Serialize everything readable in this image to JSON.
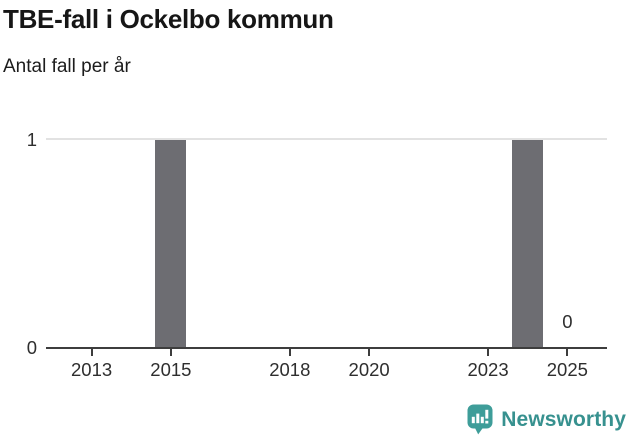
{
  "header": {
    "title": "TBE-fall i Ockelbo kommun",
    "subtitle": "Antal fall per år"
  },
  "chart_data": {
    "type": "bar",
    "title": "TBE-fall i Ockelbo kommun",
    "subtitle": "Antal fall per år",
    "xlabel": "",
    "ylabel": "Antal fall per år",
    "x": [
      2012,
      2013,
      2014,
      2015,
      2016,
      2017,
      2018,
      2019,
      2020,
      2021,
      2022,
      2023,
      2024,
      2025
    ],
    "values": [
      0,
      0,
      0,
      1,
      0,
      0,
      0,
      0,
      0,
      0,
      0,
      0,
      1,
      0
    ],
    "xticks": [
      2013,
      2015,
      2018,
      2020,
      2023,
      2025
    ],
    "yticks": [
      0,
      1
    ],
    "ylim": [
      0,
      1
    ],
    "xlim": [
      2011.85,
      2026.0
    ],
    "grid": "y-only",
    "legend_position": "none",
    "annotation": {
      "year": 2025,
      "label": "0"
    },
    "colors": {
      "bar": "#6d6d72",
      "gridline": "#e2e2e2",
      "axis": "#3d3d3d",
      "tick_text": "#2e2e2e"
    }
  },
  "footer": {
    "brand": "Newsworthy",
    "logo_icon": "bar-chart-speech-bubble-icon",
    "brand_mark_color": "#3e9d99",
    "brand_text_color": "#37918f"
  }
}
